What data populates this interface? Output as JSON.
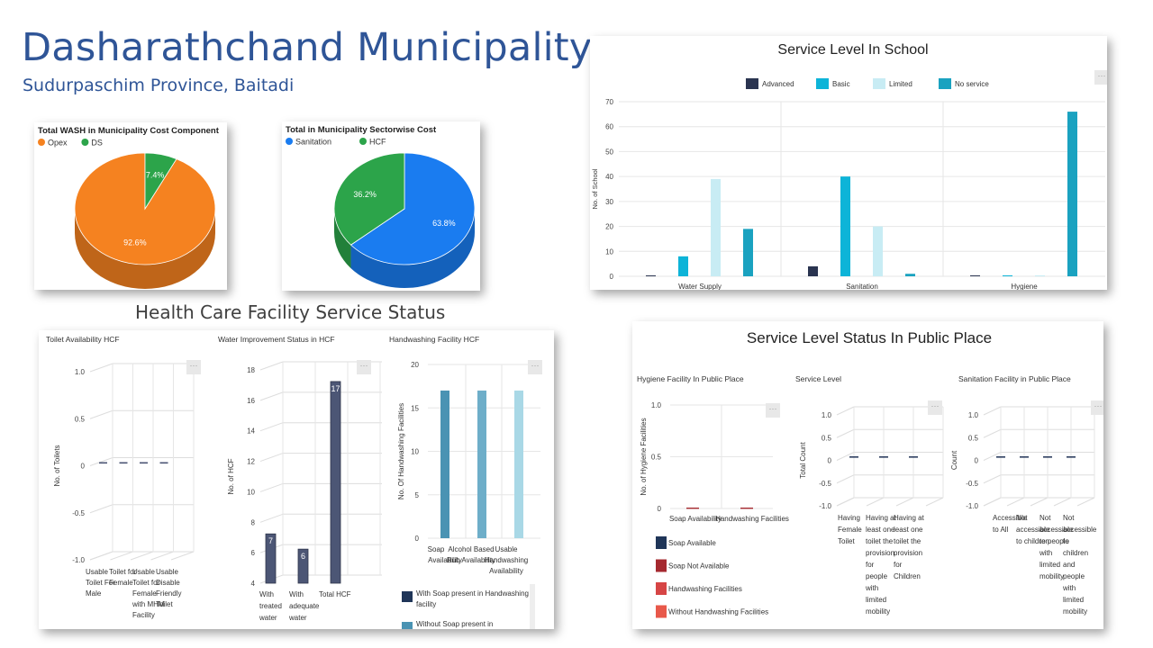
{
  "header": {
    "title": "Dasharathchand Municipality",
    "subtitle": "Sudurpaschim Province, Baitadi",
    "hcf_section_title": "Health Care Facility Service Status"
  },
  "icons": {
    "menu": "menu-icon"
  },
  "colors": {
    "opex": "#f58220",
    "ds": "#2ca44a",
    "sanitation": "#1a7cf0",
    "hcf": "#2ca44a",
    "advanced": "#2a3450",
    "basic": "#0db4d8",
    "limited": "#c8ecf4",
    "no_service": "#1aa2c0",
    "hcf_bar": "#4c5675",
    "hand_bar1": "#4a93b3",
    "hand_bar2": "#6eaec9",
    "hand_bar3": "#a9d8e6",
    "soap": "#1f3558",
    "soap_not": "#a5292f",
    "hand_fac": "#d64545",
    "without_hand": "#e8584a"
  },
  "chart_data": [
    {
      "type": "pie",
      "title": "Total WASH in Municipality Cost Component",
      "labels": [
        "Opex",
        "DS"
      ],
      "values": [
        92.6,
        7.4
      ],
      "value_labels": [
        "92.6%",
        "7.4%"
      ],
      "legend_position": "top-left"
    },
    {
      "type": "pie",
      "title": "Total in Municipality Sectorwise Cost",
      "labels": [
        "Sanitation",
        "HCF"
      ],
      "values": [
        63.8,
        36.2
      ],
      "value_labels": [
        "63.8%",
        "36.2%"
      ],
      "legend_position": "top-left"
    },
    {
      "type": "bar",
      "title": "Service Level In School",
      "categories": [
        "Water Supply",
        "Sanitation",
        "Hygiene"
      ],
      "series": [
        {
          "name": "Advanced",
          "values": [
            0,
            4,
            0
          ]
        },
        {
          "name": "Basic",
          "values": [
            8,
            40,
            0
          ]
        },
        {
          "name": "Limited",
          "values": [
            39,
            20,
            0
          ]
        },
        {
          "name": "No service",
          "values": [
            19,
            1,
            66
          ]
        }
      ],
      "ylabel": "No. of School",
      "ylim": [
        0,
        70
      ],
      "yticks": [
        "0",
        "10",
        "20",
        "30",
        "40",
        "50",
        "60",
        "70"
      ],
      "legend_position": "top"
    },
    {
      "type": "bar",
      "title": "Toilet Availability HCF",
      "categories": [
        "Usable Toilet For Male",
        "Toilet for Female",
        "Usable Toilet for Female with MHM Facility",
        "Usable Disable Friendly Toilet"
      ],
      "category_lines": [
        [
          "Usable",
          "Toilet For",
          "Male"
        ],
        [
          "Toilet for",
          "Female"
        ],
        [
          "Usable",
          "Toilet for",
          "Female",
          "with MHM",
          "Facility"
        ],
        [
          "Usable",
          "Disable",
          "Friendly",
          "Toilet"
        ]
      ],
      "values": [
        0,
        0,
        0,
        0
      ],
      "ylabel": "No. of Toilets",
      "ylim": [
        -1.0,
        1.0
      ],
      "yticks": [
        "-1.0",
        "-0.5",
        "0",
        "0.5",
        "1.0"
      ]
    },
    {
      "type": "bar",
      "title": "Water Improvement Status in HCF",
      "categories": [
        "With treated water",
        "With adequate water",
        "Total HCF"
      ],
      "category_lines": [
        [
          "With",
          "treated",
          "water"
        ],
        [
          "With",
          "adequate",
          "water"
        ],
        [
          "Total HCF"
        ]
      ],
      "values": [
        7,
        6,
        17
      ],
      "value_labels": [
        "7",
        "6",
        "17"
      ],
      "ylabel": "No. of HCF",
      "ylim": [
        4,
        18
      ],
      "yticks": [
        "4",
        "6",
        "8",
        "10",
        "12",
        "14",
        "16",
        "18"
      ]
    },
    {
      "type": "bar",
      "title": "Handwashing Facility HCF",
      "categories": [
        "Soap Availability",
        "Alcohol Based Rub Availability",
        "Usable Handwashing Availability"
      ],
      "category_lines": [
        [
          "Soap",
          "Availability"
        ],
        [
          "Alcohol Based",
          "Rub Availability"
        ],
        [
          "Usable",
          "Handwashing",
          "Availability"
        ]
      ],
      "values": [
        17,
        17,
        17
      ],
      "ylabel": "No. Of Handwashing Facilities",
      "ylim": [
        0,
        20
      ],
      "yticks": [
        "0",
        "5",
        "10",
        "15",
        "20"
      ],
      "legend": [
        "With Soap present in Handwashing facility",
        "Without Soap present in"
      ]
    },
    {
      "type": "bar",
      "title": "Hygiene Facility In Public Place",
      "categories": [
        "Soap Availability",
        "Handwashing Facilities"
      ],
      "values": [
        0,
        0
      ],
      "ylabel": "No. of Hygiene Facilities",
      "ylim": [
        0,
        1.0
      ],
      "yticks": [
        "0",
        "0.5",
        "1.0"
      ],
      "legend": [
        "Soap Available",
        "Soap Not Available",
        "Handwashing Facilities",
        "Without Handwashing Facilities"
      ]
    },
    {
      "type": "bar",
      "title": "Service Level",
      "categories": [
        "Having Female Toilet",
        "Having at least one toilet the provision for people with limited mobility",
        "Having at least one toilet the provision for Children"
      ],
      "category_lines": [
        [
          "Having",
          "Female",
          "Toilet"
        ],
        [
          "Having at",
          "least one",
          "toilet the",
          "provision",
          "for",
          "people",
          "with",
          "limited",
          "mobility"
        ],
        [
          "Having at",
          "least one",
          "toilet the",
          "provision",
          "for",
          "Children"
        ]
      ],
      "values": [
        0,
        0,
        0
      ],
      "ylabel": "Total Count",
      "ylim": [
        -1.0,
        1.0
      ],
      "yticks": [
        "-1.0",
        "-0.5",
        "0",
        "0.5",
        "1.0"
      ]
    },
    {
      "type": "bar",
      "title": "Sanitation Facility in Public Place",
      "categories": [
        "Accessible to All",
        "Not accessible to children",
        "Not accessible to people with limited mobility",
        "Not accessible to children and people with limited mobility"
      ],
      "category_lines": [
        [
          "Accessible",
          "to All"
        ],
        [
          "Not",
          "accessible",
          "to children"
        ],
        [
          "Not",
          "accessible",
          "to people",
          "with",
          "limited",
          "mobility"
        ],
        [
          "Not",
          "accessible",
          "to",
          "children",
          "and",
          "people",
          "with",
          "limited",
          "mobility"
        ]
      ],
      "values": [
        0,
        0,
        0,
        0
      ],
      "ylabel": "Count",
      "ylim": [
        -1.0,
        1.0
      ],
      "yticks": [
        "-1.0",
        "-0.5",
        "0",
        "0.5",
        "1.0"
      ]
    }
  ],
  "public_title": "Service Level Status In Public Place"
}
